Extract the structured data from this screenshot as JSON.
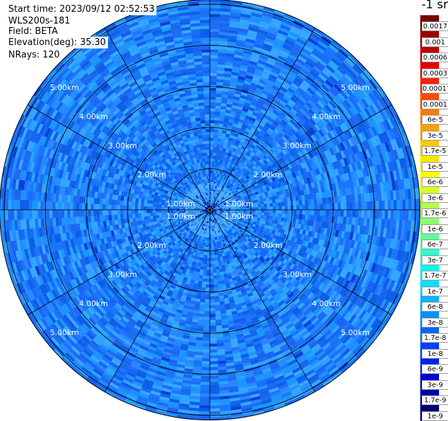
{
  "info": {
    "start_time": "Start time: 2023/09/12 02:52:53",
    "instrument": "WLS200s-181",
    "field": "Field: BETA",
    "elevation": "Elevation(deg): 35.30",
    "nrays": "NRays: 120"
  },
  "unit_label": "-1 sr",
  "colors": {
    "background_blue": "#1a76ff",
    "ring_color": "#000000",
    "range_label_color": "#ffffff"
  },
  "chart_data": {
    "type": "heatmap",
    "projection": "polar-ppi",
    "title": "",
    "n_rays": 120,
    "max_range_km": 5.0,
    "range_rings_km": [
      1,
      2,
      3,
      4,
      5
    ],
    "range_labels": [
      "1.00km",
      "2.00km",
      "3.00km",
      "4.00km",
      "5.00km"
    ],
    "spoke_angles_deg": [
      0,
      30,
      60,
      90,
      120,
      150,
      180,
      210,
      240,
      270,
      300,
      330
    ],
    "dominant_value": "1.7e-8",
    "colorbar": {
      "labels": [
        "0.0017",
        "0.001",
        "0.0006",
        "0.0003",
        "0.00017",
        "0.0001",
        "6e-5",
        "3e-5",
        "1.7e-5",
        "1e-5",
        "6e-6",
        "3e-6",
        "1.7e-6",
        "1e-6",
        "6e-7",
        "3e-7",
        "1.7e-7",
        "1e-7",
        "6e-8",
        "3e-8",
        "1.7e-8",
        "1e-8",
        "6e-9",
        "3e-9",
        "1.7e-9",
        "1e-9"
      ],
      "colors": [
        "#7a0000",
        "#990000",
        "#c00000",
        "#e60000",
        "#ff2000",
        "#ff4a00",
        "#ff7a00",
        "#ffa000",
        "#ffc800",
        "#ffe600",
        "#ffff00",
        "#d8ff20",
        "#b4ff4a",
        "#8cff70",
        "#60ff98",
        "#30ffc8",
        "#00ffee",
        "#00e0ff",
        "#00b8ff",
        "#0090ff",
        "#0068ff",
        "#0040ff",
        "#0020ee",
        "#0000d0",
        "#0000a8",
        "#000070"
      ]
    }
  }
}
